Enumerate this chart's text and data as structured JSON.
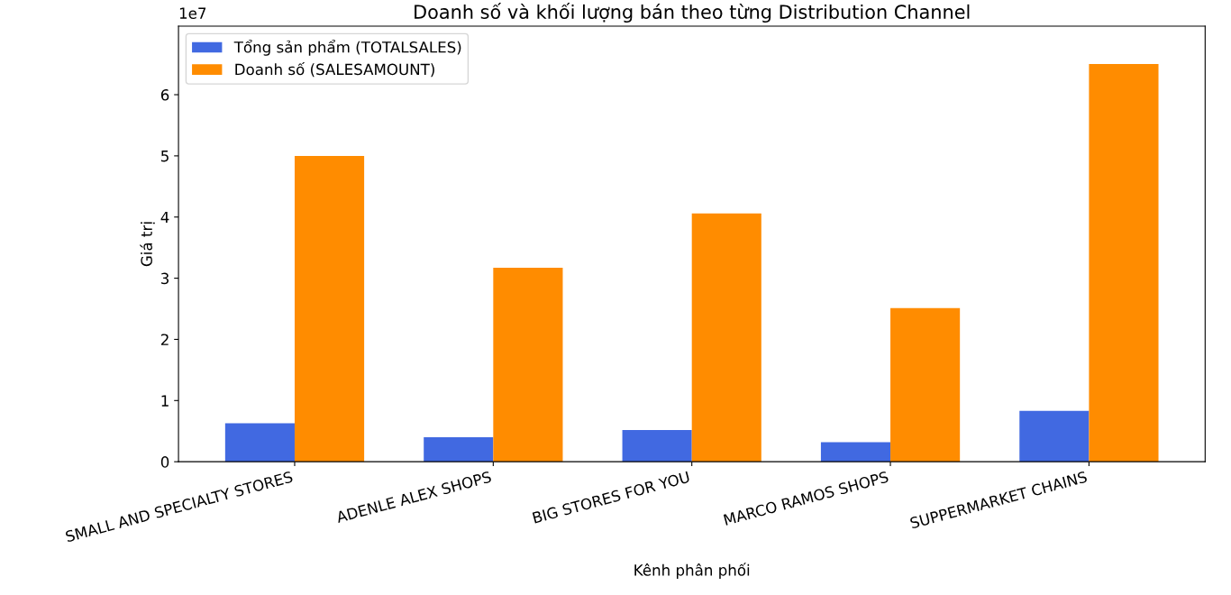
{
  "chart_data": {
    "type": "bar",
    "title": "Doanh số và khối lượng bán theo từng Distribution Channel",
    "xlabel": "Kênh phân phối",
    "ylabel": "Giá trị",
    "categories": [
      "SMALL AND SPECIALTY STORES",
      "ADENLE ALEX SHOPS",
      "BIG STORES FOR YOU",
      "MARCO RAMOS SHOPS",
      "SUPPERMARKET CHAINS"
    ],
    "series": [
      {
        "name": "Tổng sản phẩm (TOTALSALES)",
        "color": "#4169e1",
        "values": [
          0.63,
          0.4,
          0.52,
          0.32,
          0.83
        ]
      },
      {
        "name": "Doanh số (SALESAMOUNT)",
        "color": "#ff8c00",
        "values": [
          5.0,
          3.17,
          4.06,
          2.51,
          6.5
        ]
      }
    ],
    "ylim": [
      0,
      7.12
    ],
    "yticks": [
      0,
      1,
      2,
      3,
      4,
      5,
      6
    ],
    "annotations": [
      "1e7"
    ],
    "legend": "top left",
    "grid": false
  }
}
